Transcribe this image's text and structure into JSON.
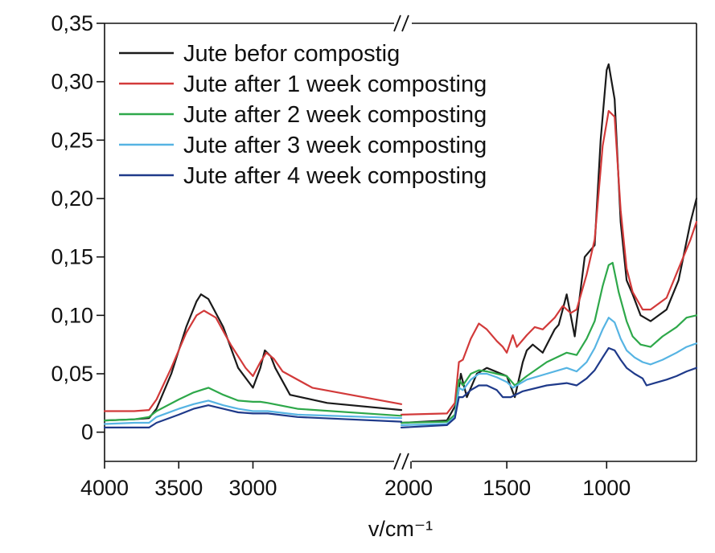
{
  "chart_data": {
    "type": "line",
    "title": "",
    "xlabel": "v/cm⁻¹",
    "ylabel": "",
    "axis_break": {
      "from": 2000,
      "to": 2000,
      "symbol": "//"
    },
    "xlim_left": [
      4000,
      2000
    ],
    "xlim_right": [
      2000,
      550
    ],
    "ylim": [
      -0.025,
      0.35
    ],
    "x_ticks": [
      {
        "value": 4000,
        "label": "4000"
      },
      {
        "value": 3500,
        "label": "3500"
      },
      {
        "value": 3000,
        "label": "3000"
      },
      {
        "value": 2000,
        "label": "2000"
      },
      {
        "value": 1500,
        "label": "1500"
      },
      {
        "value": 1000,
        "label": "1000"
      }
    ],
    "y_ticks": [
      {
        "value": 0,
        "label": "0"
      },
      {
        "value": 0.05,
        "label": "0,05"
      },
      {
        "value": 0.1,
        "label": "0,10"
      },
      {
        "value": 0.15,
        "label": "0,15"
      },
      {
        "value": 0.2,
        "label": "0,20"
      },
      {
        "value": 0.25,
        "label": "0,25"
      },
      {
        "value": 0.3,
        "label": "0,30"
      },
      {
        "value": 0.35,
        "label": "0,35"
      }
    ],
    "legend_position": "top-left",
    "grid": false,
    "series": [
      {
        "name": "Jute befor compostig",
        "color": "#1a1a1a",
        "points": [
          [
            4000,
            0.01
          ],
          [
            3800,
            0.011
          ],
          [
            3700,
            0.012
          ],
          [
            3650,
            0.02
          ],
          [
            3550,
            0.05
          ],
          [
            3450,
            0.09
          ],
          [
            3380,
            0.112
          ],
          [
            3350,
            0.118
          ],
          [
            3300,
            0.114
          ],
          [
            3200,
            0.09
          ],
          [
            3100,
            0.055
          ],
          [
            3000,
            0.038
          ],
          [
            2950,
            0.055
          ],
          [
            2920,
            0.07
          ],
          [
            2880,
            0.065
          ],
          [
            2850,
            0.055
          ],
          [
            2750,
            0.032
          ],
          [
            2500,
            0.025
          ],
          [
            2000,
            0.019
          ],
          null,
          [
            2000,
            0.008
          ],
          [
            1800,
            0.01
          ],
          [
            1750,
            0.025
          ],
          [
            1730,
            0.05
          ],
          [
            1700,
            0.03
          ],
          [
            1650,
            0.05
          ],
          [
            1600,
            0.055
          ],
          [
            1500,
            0.048
          ],
          [
            1460,
            0.03
          ],
          [
            1420,
            0.06
          ],
          [
            1400,
            0.07
          ],
          [
            1370,
            0.075
          ],
          [
            1320,
            0.068
          ],
          [
            1260,
            0.088
          ],
          [
            1240,
            0.092
          ],
          [
            1200,
            0.118
          ],
          [
            1160,
            0.082
          ],
          [
            1110,
            0.15
          ],
          [
            1060,
            0.16
          ],
          [
            1030,
            0.25
          ],
          [
            1000,
            0.31
          ],
          [
            990,
            0.315
          ],
          [
            960,
            0.285
          ],
          [
            930,
            0.18
          ],
          [
            900,
            0.13
          ],
          [
            870,
            0.118
          ],
          [
            830,
            0.1
          ],
          [
            780,
            0.095
          ],
          [
            700,
            0.105
          ],
          [
            640,
            0.13
          ],
          [
            580,
            0.18
          ],
          [
            550,
            0.2
          ]
        ]
      },
      {
        "name": "Jute after 1 week composting",
        "color": "#d23a3a",
        "points": [
          [
            4000,
            0.018
          ],
          [
            3800,
            0.018
          ],
          [
            3700,
            0.019
          ],
          [
            3650,
            0.028
          ],
          [
            3550,
            0.055
          ],
          [
            3450,
            0.085
          ],
          [
            3380,
            0.1
          ],
          [
            3330,
            0.104
          ],
          [
            3250,
            0.098
          ],
          [
            3150,
            0.075
          ],
          [
            3050,
            0.055
          ],
          [
            3000,
            0.048
          ],
          [
            2950,
            0.06
          ],
          [
            2910,
            0.068
          ],
          [
            2860,
            0.063
          ],
          [
            2800,
            0.052
          ],
          [
            2600,
            0.038
          ],
          [
            2000,
            0.024
          ],
          null,
          [
            2000,
            0.015
          ],
          [
            1800,
            0.016
          ],
          [
            1760,
            0.025
          ],
          [
            1740,
            0.06
          ],
          [
            1720,
            0.062
          ],
          [
            1680,
            0.08
          ],
          [
            1640,
            0.093
          ],
          [
            1600,
            0.088
          ],
          [
            1550,
            0.078
          ],
          [
            1520,
            0.073
          ],
          [
            1500,
            0.068
          ],
          [
            1470,
            0.083
          ],
          [
            1450,
            0.073
          ],
          [
            1400,
            0.083
          ],
          [
            1360,
            0.09
          ],
          [
            1320,
            0.088
          ],
          [
            1260,
            0.098
          ],
          [
            1220,
            0.108
          ],
          [
            1180,
            0.102
          ],
          [
            1150,
            0.105
          ],
          [
            1100,
            0.135
          ],
          [
            1060,
            0.165
          ],
          [
            1020,
            0.245
          ],
          [
            990,
            0.275
          ],
          [
            960,
            0.27
          ],
          [
            930,
            0.19
          ],
          [
            900,
            0.14
          ],
          [
            870,
            0.12
          ],
          [
            820,
            0.105
          ],
          [
            780,
            0.105
          ],
          [
            700,
            0.115
          ],
          [
            640,
            0.14
          ],
          [
            580,
            0.165
          ],
          [
            550,
            0.18
          ]
        ]
      },
      {
        "name": "Jute after 2 week composting",
        "color": "#2ea84a",
        "points": [
          [
            4000,
            0.01
          ],
          [
            3800,
            0.011
          ],
          [
            3700,
            0.013
          ],
          [
            3650,
            0.018
          ],
          [
            3500,
            0.028
          ],
          [
            3400,
            0.034
          ],
          [
            3300,
            0.038
          ],
          [
            3200,
            0.032
          ],
          [
            3100,
            0.027
          ],
          [
            3000,
            0.026
          ],
          [
            2950,
            0.026
          ],
          [
            2900,
            0.025
          ],
          [
            2700,
            0.02
          ],
          [
            2000,
            0.014
          ],
          null,
          [
            2000,
            0.008
          ],
          [
            1800,
            0.009
          ],
          [
            1760,
            0.015
          ],
          [
            1740,
            0.045
          ],
          [
            1720,
            0.04
          ],
          [
            1680,
            0.05
          ],
          [
            1640,
            0.053
          ],
          [
            1600,
            0.052
          ],
          [
            1550,
            0.05
          ],
          [
            1500,
            0.048
          ],
          [
            1460,
            0.04
          ],
          [
            1400,
            0.048
          ],
          [
            1300,
            0.06
          ],
          [
            1200,
            0.068
          ],
          [
            1150,
            0.066
          ],
          [
            1100,
            0.08
          ],
          [
            1060,
            0.095
          ],
          [
            1020,
            0.125
          ],
          [
            990,
            0.143
          ],
          [
            970,
            0.145
          ],
          [
            940,
            0.12
          ],
          [
            900,
            0.095
          ],
          [
            870,
            0.082
          ],
          [
            830,
            0.075
          ],
          [
            780,
            0.073
          ],
          [
            720,
            0.082
          ],
          [
            650,
            0.09
          ],
          [
            600,
            0.098
          ],
          [
            550,
            0.1
          ]
        ]
      },
      {
        "name": "Jute after 3 week composting",
        "color": "#56b4e3",
        "points": [
          [
            4000,
            0.007
          ],
          [
            3800,
            0.008
          ],
          [
            3700,
            0.008
          ],
          [
            3650,
            0.013
          ],
          [
            3500,
            0.02
          ],
          [
            3400,
            0.024
          ],
          [
            3300,
            0.027
          ],
          [
            3200,
            0.023
          ],
          [
            3100,
            0.02
          ],
          [
            3000,
            0.018
          ],
          [
            2900,
            0.018
          ],
          [
            2700,
            0.015
          ],
          [
            2000,
            0.012
          ],
          null,
          [
            2000,
            0.006
          ],
          [
            1800,
            0.007
          ],
          [
            1760,
            0.013
          ],
          [
            1740,
            0.038
          ],
          [
            1720,
            0.036
          ],
          [
            1680,
            0.045
          ],
          [
            1640,
            0.05
          ],
          [
            1600,
            0.05
          ],
          [
            1550,
            0.047
          ],
          [
            1500,
            0.043
          ],
          [
            1470,
            0.038
          ],
          [
            1400,
            0.045
          ],
          [
            1300,
            0.05
          ],
          [
            1200,
            0.055
          ],
          [
            1150,
            0.052
          ],
          [
            1100,
            0.06
          ],
          [
            1060,
            0.072
          ],
          [
            1020,
            0.088
          ],
          [
            990,
            0.098
          ],
          [
            960,
            0.094
          ],
          [
            930,
            0.08
          ],
          [
            900,
            0.07
          ],
          [
            860,
            0.064
          ],
          [
            820,
            0.06
          ],
          [
            780,
            0.058
          ],
          [
            720,
            0.062
          ],
          [
            650,
            0.068
          ],
          [
            600,
            0.073
          ],
          [
            550,
            0.076
          ]
        ]
      },
      {
        "name": "Jute after 4 week composting",
        "color": "#1f3a8a",
        "points": [
          [
            4000,
            0.004
          ],
          [
            3800,
            0.004
          ],
          [
            3700,
            0.004
          ],
          [
            3650,
            0.008
          ],
          [
            3500,
            0.015
          ],
          [
            3400,
            0.02
          ],
          [
            3300,
            0.023
          ],
          [
            3200,
            0.02
          ],
          [
            3100,
            0.017
          ],
          [
            3000,
            0.016
          ],
          [
            2900,
            0.016
          ],
          [
            2700,
            0.013
          ],
          [
            2000,
            0.009
          ],
          null,
          [
            2000,
            0.004
          ],
          [
            1800,
            0.006
          ],
          [
            1760,
            0.012
          ],
          [
            1740,
            0.03
          ],
          [
            1720,
            0.03
          ],
          [
            1680,
            0.036
          ],
          [
            1640,
            0.04
          ],
          [
            1600,
            0.04
          ],
          [
            1550,
            0.036
          ],
          [
            1520,
            0.03
          ],
          [
            1480,
            0.03
          ],
          [
            1420,
            0.035
          ],
          [
            1300,
            0.04
          ],
          [
            1200,
            0.042
          ],
          [
            1150,
            0.04
          ],
          [
            1100,
            0.046
          ],
          [
            1060,
            0.053
          ],
          [
            1020,
            0.064
          ],
          [
            990,
            0.072
          ],
          [
            960,
            0.07
          ],
          [
            930,
            0.062
          ],
          [
            900,
            0.055
          ],
          [
            860,
            0.05
          ],
          [
            820,
            0.046
          ],
          [
            800,
            0.04
          ],
          [
            760,
            0.042
          ],
          [
            700,
            0.045
          ],
          [
            650,
            0.048
          ],
          [
            600,
            0.052
          ],
          [
            550,
            0.055
          ]
        ]
      }
    ]
  }
}
